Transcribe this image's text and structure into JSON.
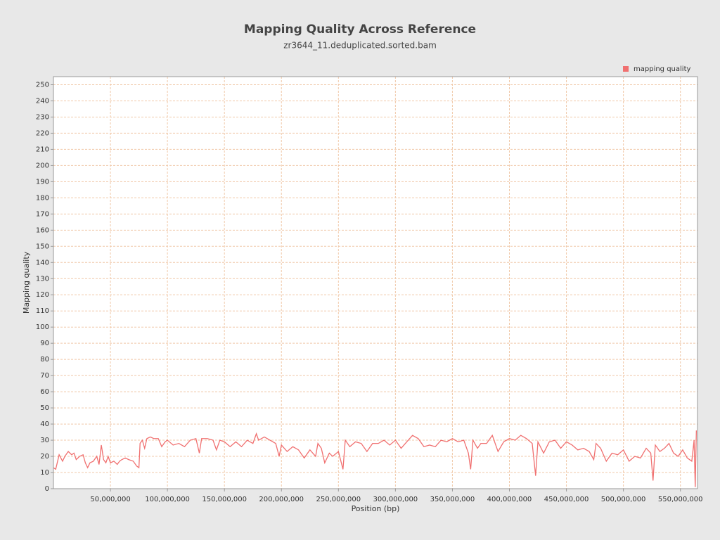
{
  "chart_data": {
    "type": "line",
    "title": "Mapping Quality Across Reference",
    "subtitle": "zr3644_11.deduplicated.sorted.bam",
    "x_label": "Position (bp)",
    "y_label": "Mapping quality",
    "legend": "top-right",
    "grid": true,
    "xlim": [
      0,
      565000000
    ],
    "ylim": [
      0,
      255
    ],
    "xticks": [
      {
        "value": 50000000,
        "label": "50,000,000"
      },
      {
        "value": 100000000,
        "label": "100,000,000"
      },
      {
        "value": 150000000,
        "label": "150,000,000"
      },
      {
        "value": 200000000,
        "label": "200,000,000"
      },
      {
        "value": 250000000,
        "label": "250,000,000"
      },
      {
        "value": 300000000,
        "label": "300,000,000"
      },
      {
        "value": 350000000,
        "label": "350,000,000"
      },
      {
        "value": 400000000,
        "label": "400,000,000"
      },
      {
        "value": 450000000,
        "label": "450,000,000"
      },
      {
        "value": 500000000,
        "label": "500,000,000"
      },
      {
        "value": 550000000,
        "label": "550,000,000"
      }
    ],
    "yticks": [
      0,
      10,
      20,
      30,
      40,
      50,
      60,
      70,
      80,
      90,
      100,
      110,
      120,
      130,
      140,
      150,
      160,
      170,
      180,
      190,
      200,
      210,
      220,
      230,
      240,
      250
    ],
    "x": [
      0,
      2000000,
      5000000,
      8000000,
      10000000,
      13000000,
      16000000,
      18000000,
      20000000,
      23000000,
      26000000,
      28000000,
      30000000,
      32000000,
      35000000,
      38000000,
      40000000,
      42000000,
      44000000,
      46000000,
      48000000,
      50000000,
      53000000,
      56000000,
      58000000,
      60000000,
      63000000,
      66000000,
      70000000,
      73000000,
      75000000,
      76000000,
      78000000,
      80000000,
      82000000,
      85000000,
      88000000,
      92000000,
      95000000,
      98000000,
      100000000,
      105000000,
      110000000,
      115000000,
      120000000,
      125000000,
      128000000,
      130000000,
      135000000,
      140000000,
      143000000,
      146000000,
      150000000,
      155000000,
      160000000,
      165000000,
      170000000,
      175000000,
      178000000,
      180000000,
      185000000,
      190000000,
      195000000,
      198000000,
      200000000,
      205000000,
      210000000,
      215000000,
      220000000,
      225000000,
      230000000,
      232000000,
      235000000,
      238000000,
      242000000,
      245000000,
      250000000,
      254000000,
      256000000,
      260000000,
      265000000,
      270000000,
      275000000,
      280000000,
      285000000,
      290000000,
      295000000,
      300000000,
      305000000,
      310000000,
      315000000,
      320000000,
      325000000,
      330000000,
      335000000,
      340000000,
      345000000,
      350000000,
      355000000,
      360000000,
      364000000,
      366000000,
      368000000,
      372000000,
      375000000,
      380000000,
      385000000,
      388000000,
      390000000,
      395000000,
      400000000,
      405000000,
      410000000,
      415000000,
      420000000,
      423000000,
      425000000,
      430000000,
      435000000,
      440000000,
      445000000,
      450000000,
      455000000,
      460000000,
      465000000,
      470000000,
      474000000,
      476000000,
      480000000,
      485000000,
      490000000,
      495000000,
      500000000,
      505000000,
      510000000,
      515000000,
      520000000,
      524000000,
      526000000,
      528000000,
      532000000,
      536000000,
      540000000,
      544000000,
      548000000,
      552000000,
      556000000,
      560000000,
      562000000,
      563000000,
      564000000
    ],
    "series": [
      {
        "name": "mapping quality",
        "color": "#f07070",
        "values": [
          13,
          12,
          21,
          17,
          20,
          23,
          21,
          22,
          18,
          20,
          21,
          16,
          13,
          16,
          17,
          20,
          15,
          27,
          18,
          16,
          20,
          16,
          17,
          15,
          17,
          18,
          19,
          18,
          17,
          14,
          13,
          28,
          30,
          25,
          31,
          32,
          31,
          31,
          26,
          29,
          30,
          27,
          28,
          26,
          30,
          31,
          22,
          31,
          31,
          30,
          24,
          30,
          29,
          26,
          29,
          26,
          30,
          28,
          34,
          30,
          32,
          30,
          28,
          20,
          27,
          23,
          26,
          24,
          19,
          24,
          20,
          28,
          25,
          16,
          22,
          20,
          23,
          12,
          30,
          26,
          29,
          28,
          23,
          28,
          28,
          30,
          27,
          30,
          25,
          29,
          33,
          31,
          26,
          27,
          26,
          30,
          29,
          31,
          29,
          30,
          22,
          12,
          30,
          25,
          28,
          28,
          33,
          27,
          23,
          29,
          31,
          30,
          33,
          31,
          28,
          8,
          29,
          22,
          29,
          30,
          25,
          29,
          27,
          24,
          25,
          23,
          18,
          28,
          25,
          17,
          22,
          21,
          24,
          17,
          20,
          19,
          25,
          22,
          5,
          27,
          23,
          25,
          28,
          22,
          20,
          24,
          19,
          17,
          30,
          1,
          36
        ]
      }
    ]
  }
}
